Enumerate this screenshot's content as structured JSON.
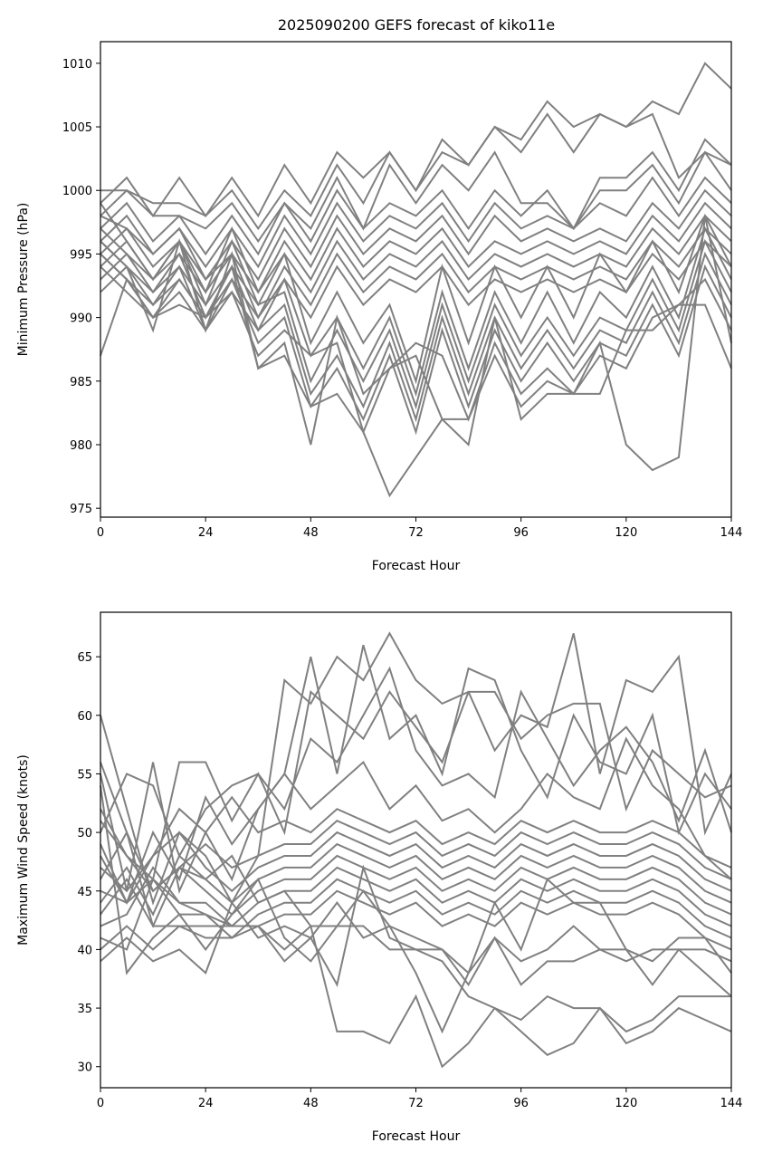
{
  "title": "2025090200 GEFS forecast of kiko11e",
  "line_color": "#808080",
  "chart_data": [
    {
      "type": "line",
      "title": "2025090200 GEFS forecast of kiko11e",
      "xlabel": "Forecast Hour",
      "ylabel": "Minimum Pressure (hPa)",
      "xlim": [
        0,
        144
      ],
      "ylim": [
        974.3,
        1011.7
      ],
      "xticks": [
        0,
        24,
        48,
        72,
        96,
        120,
        144
      ],
      "yticks": [
        975,
        980,
        985,
        990,
        995,
        1000,
        1005,
        1010
      ],
      "grid": false,
      "x": [
        0,
        6,
        12,
        18,
        24,
        30,
        36,
        42,
        48,
        54,
        60,
        66,
        72,
        78,
        84,
        90,
        96,
        102,
        108,
        114,
        120,
        126,
        132,
        138,
        144
      ],
      "series": [
        {
          "values": [
            999,
            1001,
            998,
            1001,
            998,
            1001,
            998,
            1002,
            999,
            1003,
            1001,
            1003,
            1000,
            1004,
            1002,
            1005,
            1004,
            1007,
            1005,
            1006,
            1005,
            1007,
            1006,
            1010,
            1008
          ]
        },
        {
          "values": [
            998,
            1000,
            999,
            999,
            998,
            1000,
            997,
            1000,
            998,
            1002,
            999,
            1003,
            1000,
            1003,
            1002,
            1005,
            1003,
            1006,
            1003,
            1006,
            1005,
            1006,
            1001,
            1003,
            1002
          ]
        },
        {
          "values": [
            1000,
            1000,
            998,
            998,
            997,
            999,
            996,
            999,
            997,
            1001,
            997,
            1002,
            999,
            1002,
            1000,
            1003,
            999,
            999,
            997,
            1001,
            1001,
            1003,
            1000,
            1004,
            1002
          ]
        },
        {
          "values": [
            997,
            999,
            996,
            998,
            995,
            998,
            995,
            999,
            996,
            1000,
            997,
            999,
            998,
            1000,
            997,
            1000,
            998,
            1000,
            997,
            1000,
            1000,
            1002,
            999,
            1003,
            1000
          ]
        },
        {
          "values": [
            996,
            998,
            995,
            997,
            994,
            997,
            994,
            998,
            995,
            999,
            996,
            998,
            997,
            999,
            996,
            999,
            997,
            998,
            997,
            999,
            998,
            1001,
            998,
            1001,
            999
          ]
        },
        {
          "values": [
            995,
            997,
            994,
            996,
            993,
            996,
            993,
            997,
            994,
            998,
            995,
            997,
            996,
            998,
            995,
            998,
            996,
            997,
            996,
            997,
            996,
            999,
            997,
            1000,
            998
          ]
        },
        {
          "values": [
            994,
            996,
            993,
            995,
            992,
            995,
            992,
            996,
            993,
            997,
            994,
            996,
            995,
            997,
            994,
            996,
            995,
            996,
            995,
            996,
            995,
            998,
            996,
            999,
            997
          ]
        },
        {
          "values": [
            993,
            995,
            992,
            994,
            991,
            994,
            991,
            995,
            992,
            996,
            993,
            995,
            994,
            996,
            993,
            995,
            994,
            995,
            994,
            995,
            994,
            997,
            995,
            998,
            996
          ]
        },
        {
          "values": [
            992,
            994,
            991,
            993,
            990,
            993,
            990,
            994,
            991,
            995,
            992,
            994,
            993,
            995,
            992,
            994,
            993,
            994,
            993,
            994,
            993,
            996,
            994,
            997,
            995
          ]
        },
        {
          "values": [
            987,
            993,
            990,
            992,
            989,
            992,
            989,
            993,
            990,
            994,
            991,
            993,
            992,
            994,
            991,
            993,
            992,
            993,
            992,
            993,
            992,
            995,
            993,
            996,
            994
          ]
        },
        {
          "values": [
            999,
            996,
            993,
            996,
            992,
            997,
            992,
            995,
            988,
            992,
            988,
            991,
            985,
            994,
            988,
            994,
            990,
            994,
            990,
            995,
            992,
            996,
            992,
            998,
            994
          ]
        },
        {
          "values": [
            998,
            997,
            995,
            997,
            993,
            995,
            990,
            993,
            987,
            990,
            986,
            990,
            984,
            992,
            986,
            992,
            988,
            992,
            988,
            992,
            990,
            994,
            990,
            997,
            993
          ]
        },
        {
          "values": [
            997,
            995,
            993,
            996,
            991,
            996,
            991,
            992,
            985,
            989,
            985,
            989,
            983,
            991,
            985,
            991,
            987,
            990,
            987,
            990,
            989,
            993,
            989,
            996,
            992
          ]
        },
        {
          "values": [
            996,
            994,
            992,
            995,
            990,
            994,
            989,
            991,
            984,
            987,
            983,
            988,
            982,
            990,
            984,
            990,
            986,
            989,
            986,
            989,
            988,
            992,
            988,
            995,
            991
          ]
        },
        {
          "values": [
            995,
            993,
            991,
            994,
            989,
            993,
            988,
            990,
            983,
            986,
            982,
            987,
            981,
            989,
            983,
            989,
            985,
            988,
            985,
            988,
            987,
            991,
            987,
            994,
            990
          ]
        },
        {
          "values": [
            994,
            992,
            990,
            993,
            990,
            992,
            987,
            989,
            987,
            988,
            981,
            986,
            988,
            987,
            982,
            988,
            984,
            986,
            984,
            987,
            986,
            990,
            991,
            993,
            989
          ]
        },
        {
          "values": [
            996,
            994,
            989,
            996,
            989,
            995,
            986,
            988,
            980,
            990,
            984,
            986,
            987,
            982,
            980,
            990,
            982,
            984,
            984,
            988,
            980,
            978,
            979,
            998,
            988
          ]
        },
        {
          "values": [
            995,
            993,
            990,
            991,
            990,
            994,
            986,
            987,
            983,
            984,
            981,
            976,
            979,
            982,
            982,
            987,
            983,
            985,
            984,
            984,
            989,
            989,
            991,
            991,
            986
          ]
        }
      ]
    },
    {
      "type": "line",
      "title": "",
      "xlabel": "Forecast Hour",
      "ylabel": "Maximum Wind Speed (knots)",
      "xlim": [
        0,
        144
      ],
      "ylim": [
        28.2,
        68.8
      ],
      "xticks": [
        0,
        24,
        48,
        72,
        96,
        120,
        144
      ],
      "yticks": [
        30,
        35,
        40,
        45,
        50,
        55,
        60,
        65
      ],
      "grid": false,
      "x": [
        0,
        6,
        12,
        18,
        24,
        30,
        36,
        42,
        48,
        54,
        60,
        66,
        72,
        78,
        84,
        90,
        96,
        102,
        108,
        114,
        120,
        126,
        132,
        138,
        144
      ],
      "series": [
        {
          "values": [
            60,
            52,
            44,
            50,
            48,
            44,
            48,
            63,
            61,
            65,
            63,
            67,
            63,
            61,
            62,
            57,
            60,
            59,
            67,
            55,
            63,
            62,
            65,
            50,
            55
          ]
        },
        {
          "values": [
            55,
            45,
            56,
            45,
            50,
            46,
            52,
            55,
            65,
            55,
            66,
            58,
            60,
            55,
            64,
            63,
            57,
            53,
            60,
            56,
            55,
            60,
            50,
            55,
            52
          ]
        },
        {
          "values": [
            52,
            48,
            46,
            56,
            56,
            51,
            55,
            50,
            62,
            60,
            58,
            62,
            59,
            56,
            62,
            62,
            58,
            60,
            61,
            61,
            52,
            57,
            55,
            53,
            54
          ]
        },
        {
          "values": [
            50,
            55,
            54,
            48,
            52,
            54,
            55,
            52,
            58,
            56,
            60,
            64,
            57,
            54,
            55,
            53,
            62,
            58,
            54,
            57,
            59,
            56,
            51,
            57,
            50
          ]
        },
        {
          "values": [
            48,
            44,
            50,
            46,
            53,
            49,
            52,
            55,
            52,
            54,
            56,
            52,
            54,
            51,
            52,
            50,
            52,
            55,
            53,
            52,
            58,
            54,
            52,
            48,
            46
          ]
        },
        {
          "values": [
            47,
            45,
            48,
            52,
            50,
            53,
            50,
            51,
            50,
            52,
            51,
            50,
            51,
            49,
            50,
            49,
            51,
            50,
            51,
            50,
            50,
            51,
            50,
            48,
            47
          ]
        },
        {
          "values": [
            46,
            50,
            45,
            47,
            49,
            47,
            48,
            49,
            49,
            51,
            50,
            49,
            50,
            48,
            49,
            48,
            50,
            49,
            50,
            49,
            49,
            50,
            49,
            47,
            46
          ]
        },
        {
          "values": [
            45,
            44,
            48,
            50,
            47,
            45,
            47,
            48,
            48,
            50,
            49,
            48,
            49,
            47,
            48,
            47,
            49,
            48,
            49,
            48,
            48,
            49,
            48,
            46,
            45
          ]
        },
        {
          "values": [
            44,
            47,
            43,
            48,
            46,
            44,
            46,
            47,
            47,
            49,
            48,
            47,
            48,
            46,
            47,
            46,
            48,
            47,
            48,
            47,
            47,
            48,
            47,
            45,
            44
          ]
        },
        {
          "values": [
            43,
            46,
            42,
            47,
            45,
            43,
            45,
            46,
            46,
            48,
            47,
            46,
            47,
            45,
            46,
            45,
            47,
            46,
            47,
            46,
            46,
            47,
            46,
            44,
            43
          ]
        },
        {
          "values": [
            42,
            43,
            47,
            44,
            44,
            42,
            44,
            45,
            45,
            47,
            46,
            45,
            46,
            44,
            45,
            44,
            46,
            45,
            46,
            45,
            45,
            46,
            45,
            43,
            42
          ]
        },
        {
          "values": [
            41,
            40,
            46,
            43,
            43,
            41,
            43,
            44,
            44,
            46,
            45,
            44,
            45,
            43,
            44,
            43,
            45,
            44,
            45,
            44,
            44,
            45,
            44,
            42,
            41
          ]
        },
        {
          "values": [
            40,
            42,
            40,
            42,
            42,
            42,
            42,
            43,
            43,
            45,
            44,
            43,
            44,
            42,
            43,
            42,
            44,
            43,
            44,
            43,
            43,
            44,
            43,
            41,
            40
          ]
        },
        {
          "values": [
            39,
            41,
            39,
            40,
            38,
            44,
            41,
            42,
            41,
            44,
            41,
            42,
            41,
            40,
            38,
            41,
            39,
            40,
            42,
            40,
            39,
            40,
            40,
            40,
            39
          ]
        },
        {
          "values": [
            56,
            50,
            42,
            42,
            41,
            41,
            42,
            40,
            42,
            42,
            42,
            40,
            40,
            40,
            37,
            41,
            37,
            39,
            39,
            40,
            40,
            39,
            41,
            41,
            38
          ]
        },
        {
          "values": [
            49,
            44,
            46,
            44,
            43,
            42,
            42,
            39,
            41,
            37,
            47,
            41,
            40,
            39,
            36,
            35,
            33,
            31,
            32,
            35,
            33,
            34,
            36,
            36,
            36
          ]
        },
        {
          "values": [
            51,
            48,
            45,
            47,
            46,
            48,
            44,
            45,
            42,
            33,
            33,
            32,
            36,
            30,
            32,
            35,
            34,
            36,
            35,
            35,
            32,
            33,
            35,
            34,
            33
          ]
        },
        {
          "values": [
            54,
            38,
            41,
            43,
            40,
            43,
            46,
            41,
            39,
            42,
            45,
            42,
            38,
            33,
            38,
            44,
            40,
            46,
            44,
            44,
            40,
            37,
            40,
            38,
            36
          ]
        }
      ]
    }
  ]
}
